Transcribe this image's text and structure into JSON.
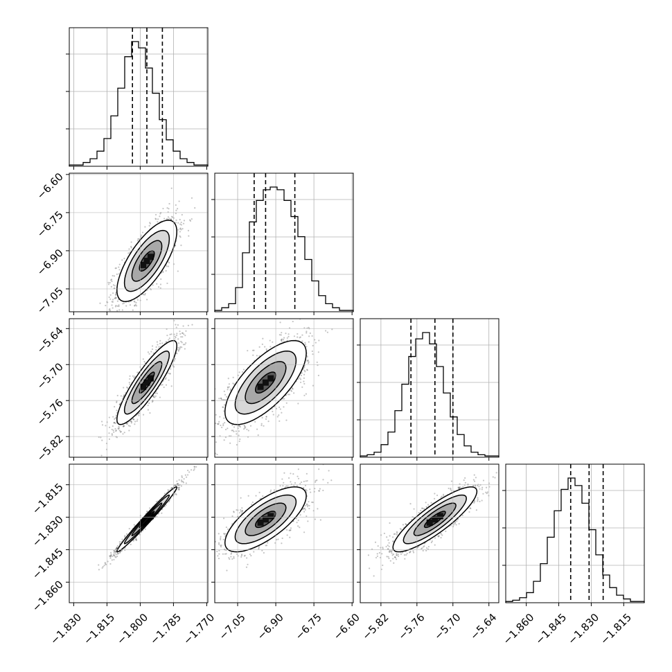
{
  "chart_data": {
    "type": "corner",
    "grid": true,
    "quantile_lines": true,
    "parameters": [
      {
        "center": -1.797,
        "q16": -1.8035,
        "q84": -1.79,
        "range": [
          -1.832,
          -1.7695
        ],
        "xticks": [
          -1.83,
          -1.815,
          -1.8,
          -1.785,
          -1.77
        ],
        "xtick_labels": [
          "−1.830",
          "−1.815",
          "−1.800",
          "−1.785",
          "−1.770"
        ]
      },
      {
        "center": -6.94,
        "q16": -6.985,
        "q84": -6.825,
        "range": [
          -7.14,
          -6.595
        ],
        "xticks": [
          -7.05,
          -6.9,
          -6.75,
          -6.6
        ],
        "xtick_labels": [
          "−7.05",
          "−6.90",
          "−6.75",
          "−6.60"
        ],
        "yticks": [
          -7.05,
          -6.9,
          -6.75,
          -6.6
        ],
        "ytick_labels": [
          "−7.05",
          "−6.90",
          "−6.75",
          "−6.60"
        ]
      },
      {
        "center": -5.73,
        "q16": -5.77,
        "q84": -5.7,
        "range": [
          -5.8545,
          -5.6235
        ],
        "xticks": [
          -5.82,
          -5.76,
          -5.7,
          -5.64
        ],
        "xtick_labels": [
          "−5.82",
          "−5.76",
          "−5.70",
          "−5.64"
        ],
        "yticks": [
          -5.64,
          -5.7,
          -5.76,
          -5.82
        ],
        "ytick_labels": [
          "−5.64",
          "−5.70",
          "−5.76",
          "−5.82"
        ]
      },
      {
        "center": -1.831,
        "q16": -1.8395,
        "q84": -1.8245,
        "range": [
          -1.8695,
          -1.8055
        ],
        "xticks": [
          -1.86,
          -1.845,
          -1.83,
          -1.815
        ],
        "xtick_labels": [
          "−1.860",
          "−1.845",
          "−1.830",
          "−1.815"
        ],
        "yticks": [
          -1.815,
          -1.83,
          -1.845,
          -1.86
        ],
        "ytick_labels": [
          "−1.815",
          "−1.830",
          "−1.845",
          "−1.860"
        ]
      }
    ],
    "histograms": [
      [
        1,
        1,
        3,
        6,
        12,
        22,
        40,
        62,
        87,
        99,
        94,
        78,
        58,
        37,
        21,
        12,
        6,
        3,
        1,
        1
      ],
      [
        1,
        3,
        6,
        18,
        44,
        67,
        83,
        91,
        93,
        91,
        83,
        71,
        56,
        39,
        23,
        12,
        6,
        3,
        1,
        1
      ],
      [
        1,
        2,
        4,
        10,
        20,
        37,
        58,
        80,
        94,
        99,
        90,
        72,
        51,
        32,
        18,
        9,
        4,
        2,
        1,
        1
      ],
      [
        1,
        2,
        4,
        8,
        17,
        31,
        52,
        73,
        90,
        99,
        93,
        79,
        58,
        38,
        22,
        12,
        6,
        3,
        1,
        1
      ]
    ],
    "correlations": [
      {
        "row": 1,
        "col": 0,
        "rho": 0.72
      },
      {
        "row": 2,
        "col": 0,
        "rho": 0.88
      },
      {
        "row": 2,
        "col": 1,
        "rho": 0.7
      },
      {
        "row": 3,
        "col": 0,
        "rho": 0.985
      },
      {
        "row": 3,
        "col": 1,
        "rho": 0.72
      },
      {
        "row": 3,
        "col": 2,
        "rho": 0.86
      }
    ]
  }
}
